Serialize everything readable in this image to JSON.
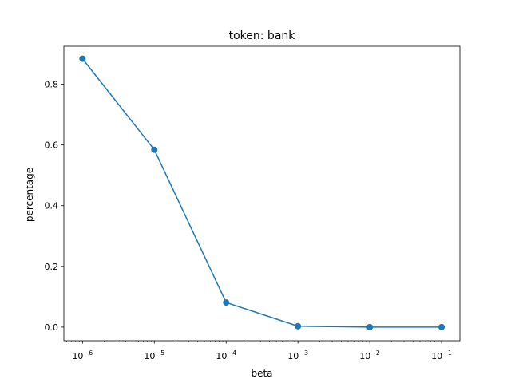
{
  "chart_data": {
    "type": "line",
    "title": "token: bank",
    "xlabel": "beta",
    "ylabel": "percentage",
    "xscale": "log",
    "xlim": [
      5.5e-07,
      0.18
    ],
    "ylim": [
      -0.045,
      0.925
    ],
    "x_ticks": [
      {
        "base": "10",
        "exp": "−6",
        "value": 1e-06
      },
      {
        "base": "10",
        "exp": "−5",
        "value": 1e-05
      },
      {
        "base": "10",
        "exp": "−4",
        "value": 0.0001
      },
      {
        "base": "10",
        "exp": "−3",
        "value": 0.001
      },
      {
        "base": "10",
        "exp": "−2",
        "value": 0.01
      },
      {
        "base": "10",
        "exp": "−1",
        "value": 0.1
      }
    ],
    "y_ticks": [
      {
        "label": "0.0",
        "value": 0.0
      },
      {
        "label": "0.2",
        "value": 0.2
      },
      {
        "label": "0.4",
        "value": 0.4
      },
      {
        "label": "0.6",
        "value": 0.6
      },
      {
        "label": "0.8",
        "value": 0.8
      }
    ],
    "grid": false,
    "markers": "circle",
    "color": "#1f77b4",
    "series": [
      {
        "x": [
          1e-06,
          1e-05,
          0.0001,
          0.001,
          0.01,
          0.1
        ],
        "y": [
          0.884,
          0.584,
          0.081,
          0.003,
          0.0,
          0.0
        ]
      }
    ]
  }
}
